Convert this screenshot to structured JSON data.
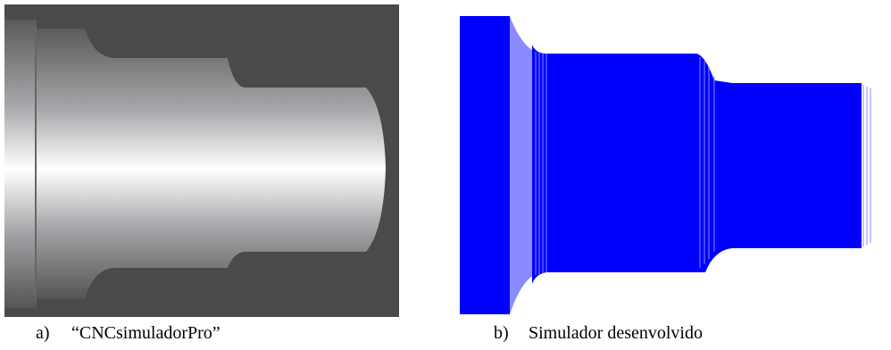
{
  "figure": {
    "panels": [
      {
        "label": "a)",
        "caption": "“CNCsimuladorPro”"
      },
      {
        "label": "b)",
        "caption": "Simulador desenvolvido"
      }
    ]
  }
}
